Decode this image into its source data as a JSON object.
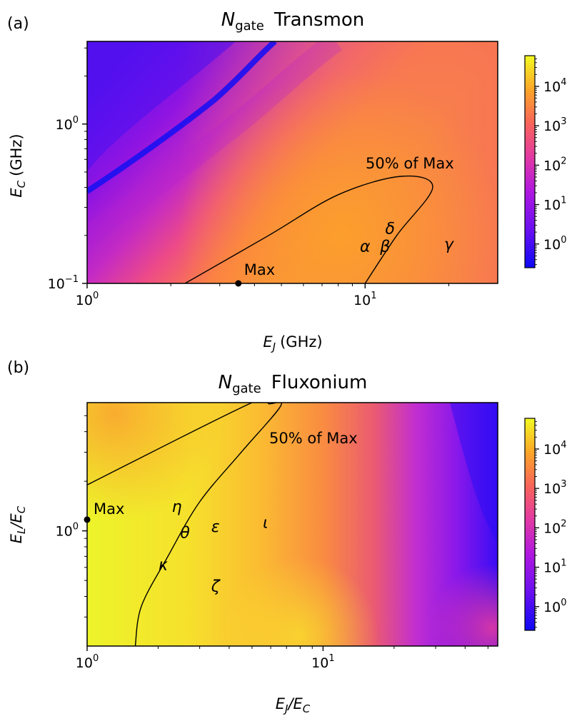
{
  "chart_data": [
    {
      "type": "heatmap",
      "panel_label": "(a)",
      "title": {
        "symbol": "N",
        "subscript": "gate",
        "name": "Transmon"
      },
      "xlabel": {
        "symbol": "E",
        "subscript": "J",
        "unit": "(GHz)"
      },
      "ylabel": {
        "symbol": "E",
        "subscript": "C",
        "unit": "(GHz)"
      },
      "x_scale": "log",
      "y_scale": "log",
      "xlim": [
        1,
        30
      ],
      "ylim": [
        0.1,
        3.3
      ],
      "x_ticks": [
        {
          "value": 1,
          "base": "10",
          "exp": "0"
        },
        {
          "value": 10,
          "base": "10",
          "exp": "1"
        }
      ],
      "y_ticks": [
        {
          "value": 0.1,
          "base": "10",
          "exp": "−1"
        },
        {
          "value": 1,
          "base": "10",
          "exp": "0"
        }
      ],
      "colorbar": {
        "scale": "log",
        "range": [
          0.25,
          60000
        ],
        "ticks": [
          {
            "value": 1,
            "base": "10",
            "exp": "0"
          },
          {
            "value": 10,
            "base": "10",
            "exp": "1"
          },
          {
            "value": 100,
            "base": "10",
            "exp": "2"
          },
          {
            "value": 1000,
            "base": "10",
            "exp": "3"
          },
          {
            "value": 10000,
            "base": "10",
            "exp": "4"
          }
        ]
      },
      "contour": {
        "label": "50% of Max",
        "points": [
          [
            2.25,
            0.1
          ],
          [
            4.5,
            0.2
          ],
          [
            8,
            0.36
          ],
          [
            13.5,
            0.47
          ],
          [
            17.5,
            0.4
          ],
          [
            13,
            0.2
          ],
          [
            10,
            0.1
          ]
        ]
      },
      "max_point": {
        "label": "Max",
        "x": 3.5,
        "y": 0.1
      },
      "markers": [
        {
          "label": "α",
          "x": 10,
          "y": 0.17
        },
        {
          "label": "β",
          "x": 11.8,
          "y": 0.17
        },
        {
          "label": "δ",
          "x": 12.3,
          "y": 0.22
        },
        {
          "label": "γ",
          "x": 20,
          "y": 0.175
        }
      ]
    },
    {
      "type": "heatmap",
      "panel_label": "(b)",
      "title": {
        "symbol": "N",
        "subscript": "gate",
        "name": "Fluxonium"
      },
      "xlabel": {
        "text": "E_J/E_C"
      },
      "ylabel": {
        "text": "E_L/E_C"
      },
      "x_scale": "log",
      "y_scale": "log",
      "xlim": [
        1,
        55
      ],
      "ylim": [
        0.2,
        6
      ],
      "x_ticks": [
        {
          "value": 1,
          "base": "10",
          "exp": "0"
        },
        {
          "value": 10,
          "base": "10",
          "exp": "1"
        }
      ],
      "y_ticks": [
        {
          "value": 1,
          "base": "10",
          "exp": "0"
        }
      ],
      "colorbar": {
        "scale": "log",
        "range": [
          0.25,
          60000
        ],
        "ticks": [
          {
            "value": 1,
            "base": "10",
            "exp": "0"
          },
          {
            "value": 10,
            "base": "10",
            "exp": "1"
          },
          {
            "value": 100,
            "base": "10",
            "exp": "2"
          },
          {
            "value": 1000,
            "base": "10",
            "exp": "3"
          },
          {
            "value": 10000,
            "base": "10",
            "exp": "4"
          }
        ]
      },
      "contour": {
        "label": "50% of Max",
        "points": [
          [
            1,
            1.9
          ],
          [
            5,
            6
          ],
          [
            5.9,
            5.9
          ],
          [
            6.6,
            5.7
          ],
          [
            4.5,
            3
          ],
          [
            3,
            1.5
          ],
          [
            2.2,
            0.7
          ],
          [
            1.7,
            0.35
          ],
          [
            1.6,
            0.2
          ]
        ]
      },
      "max_point": {
        "label": "Max",
        "x": 1,
        "y": 1.17
      },
      "markers": [
        {
          "label": "η",
          "x": 2.4,
          "y": 1.4
        },
        {
          "label": "θ",
          "x": 2.6,
          "y": 0.97
        },
        {
          "label": "ε",
          "x": 3.5,
          "y": 1.06
        },
        {
          "label": "ι",
          "x": 5.7,
          "y": 1.12
        },
        {
          "label": "κ",
          "x": 2.1,
          "y": 0.62
        },
        {
          "label": "ζ",
          "x": 3.5,
          "y": 0.46
        }
      ]
    }
  ]
}
